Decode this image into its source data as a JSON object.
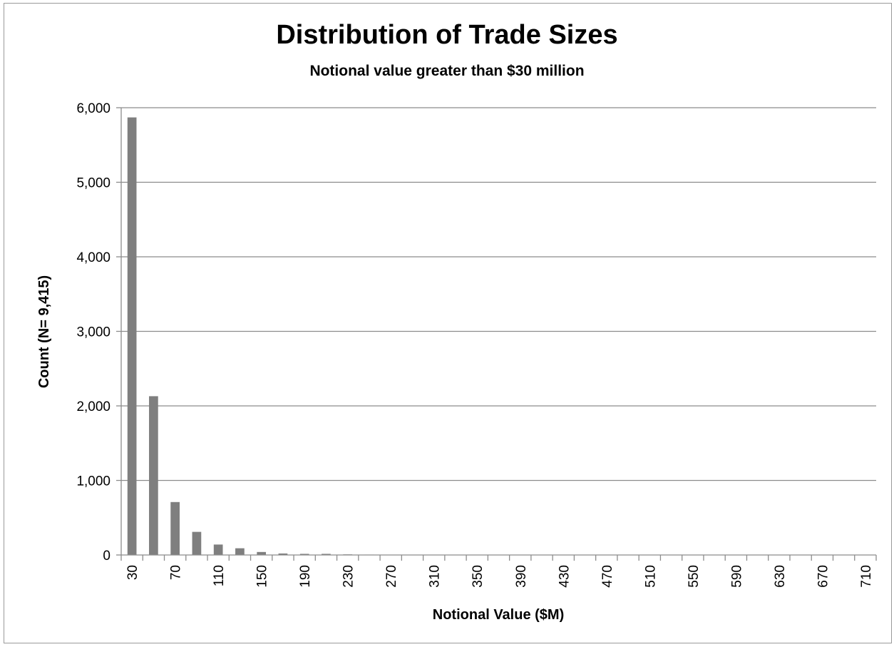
{
  "chart_data": {
    "type": "bar",
    "title": "Distribution of Trade Sizes",
    "subtitle": "Notional value greater than $30 million",
    "xlabel": "Notional Value ($M)",
    "ylabel": "Count (N= 9,415)",
    "ylim": [
      0,
      6000
    ],
    "yticks": [
      0,
      1000,
      2000,
      3000,
      4000,
      5000,
      6000
    ],
    "ytick_labels": [
      "0",
      "1,000",
      "2,000",
      "3,000",
      "4,000",
      "5,000",
      "6,000"
    ],
    "grid": true,
    "legend": "none",
    "bar_color": "#7f7f7f",
    "categories": [
      "30",
      "50",
      "70",
      "90",
      "110",
      "130",
      "150",
      "170",
      "190",
      "210",
      "230",
      "250",
      "270",
      "290",
      "310",
      "330",
      "350",
      "370",
      "390",
      "410",
      "430",
      "450",
      "470",
      "490",
      "510",
      "530",
      "550",
      "570",
      "590",
      "610",
      "630",
      "650",
      "670",
      "690",
      "710"
    ],
    "visible_tick_labels": [
      "30",
      "70",
      "110",
      "150",
      "190",
      "230",
      "270",
      "310",
      "350",
      "390",
      "430",
      "470",
      "510",
      "550",
      "590",
      "630",
      "670",
      "710"
    ],
    "values": [
      5870,
      2130,
      710,
      310,
      140,
      90,
      40,
      20,
      15,
      15,
      8,
      5,
      4,
      3,
      3,
      2,
      2,
      2,
      1,
      1,
      1,
      1,
      1,
      1,
      1,
      1,
      1,
      1,
      1,
      1,
      1,
      1,
      1,
      1,
      1
    ]
  }
}
